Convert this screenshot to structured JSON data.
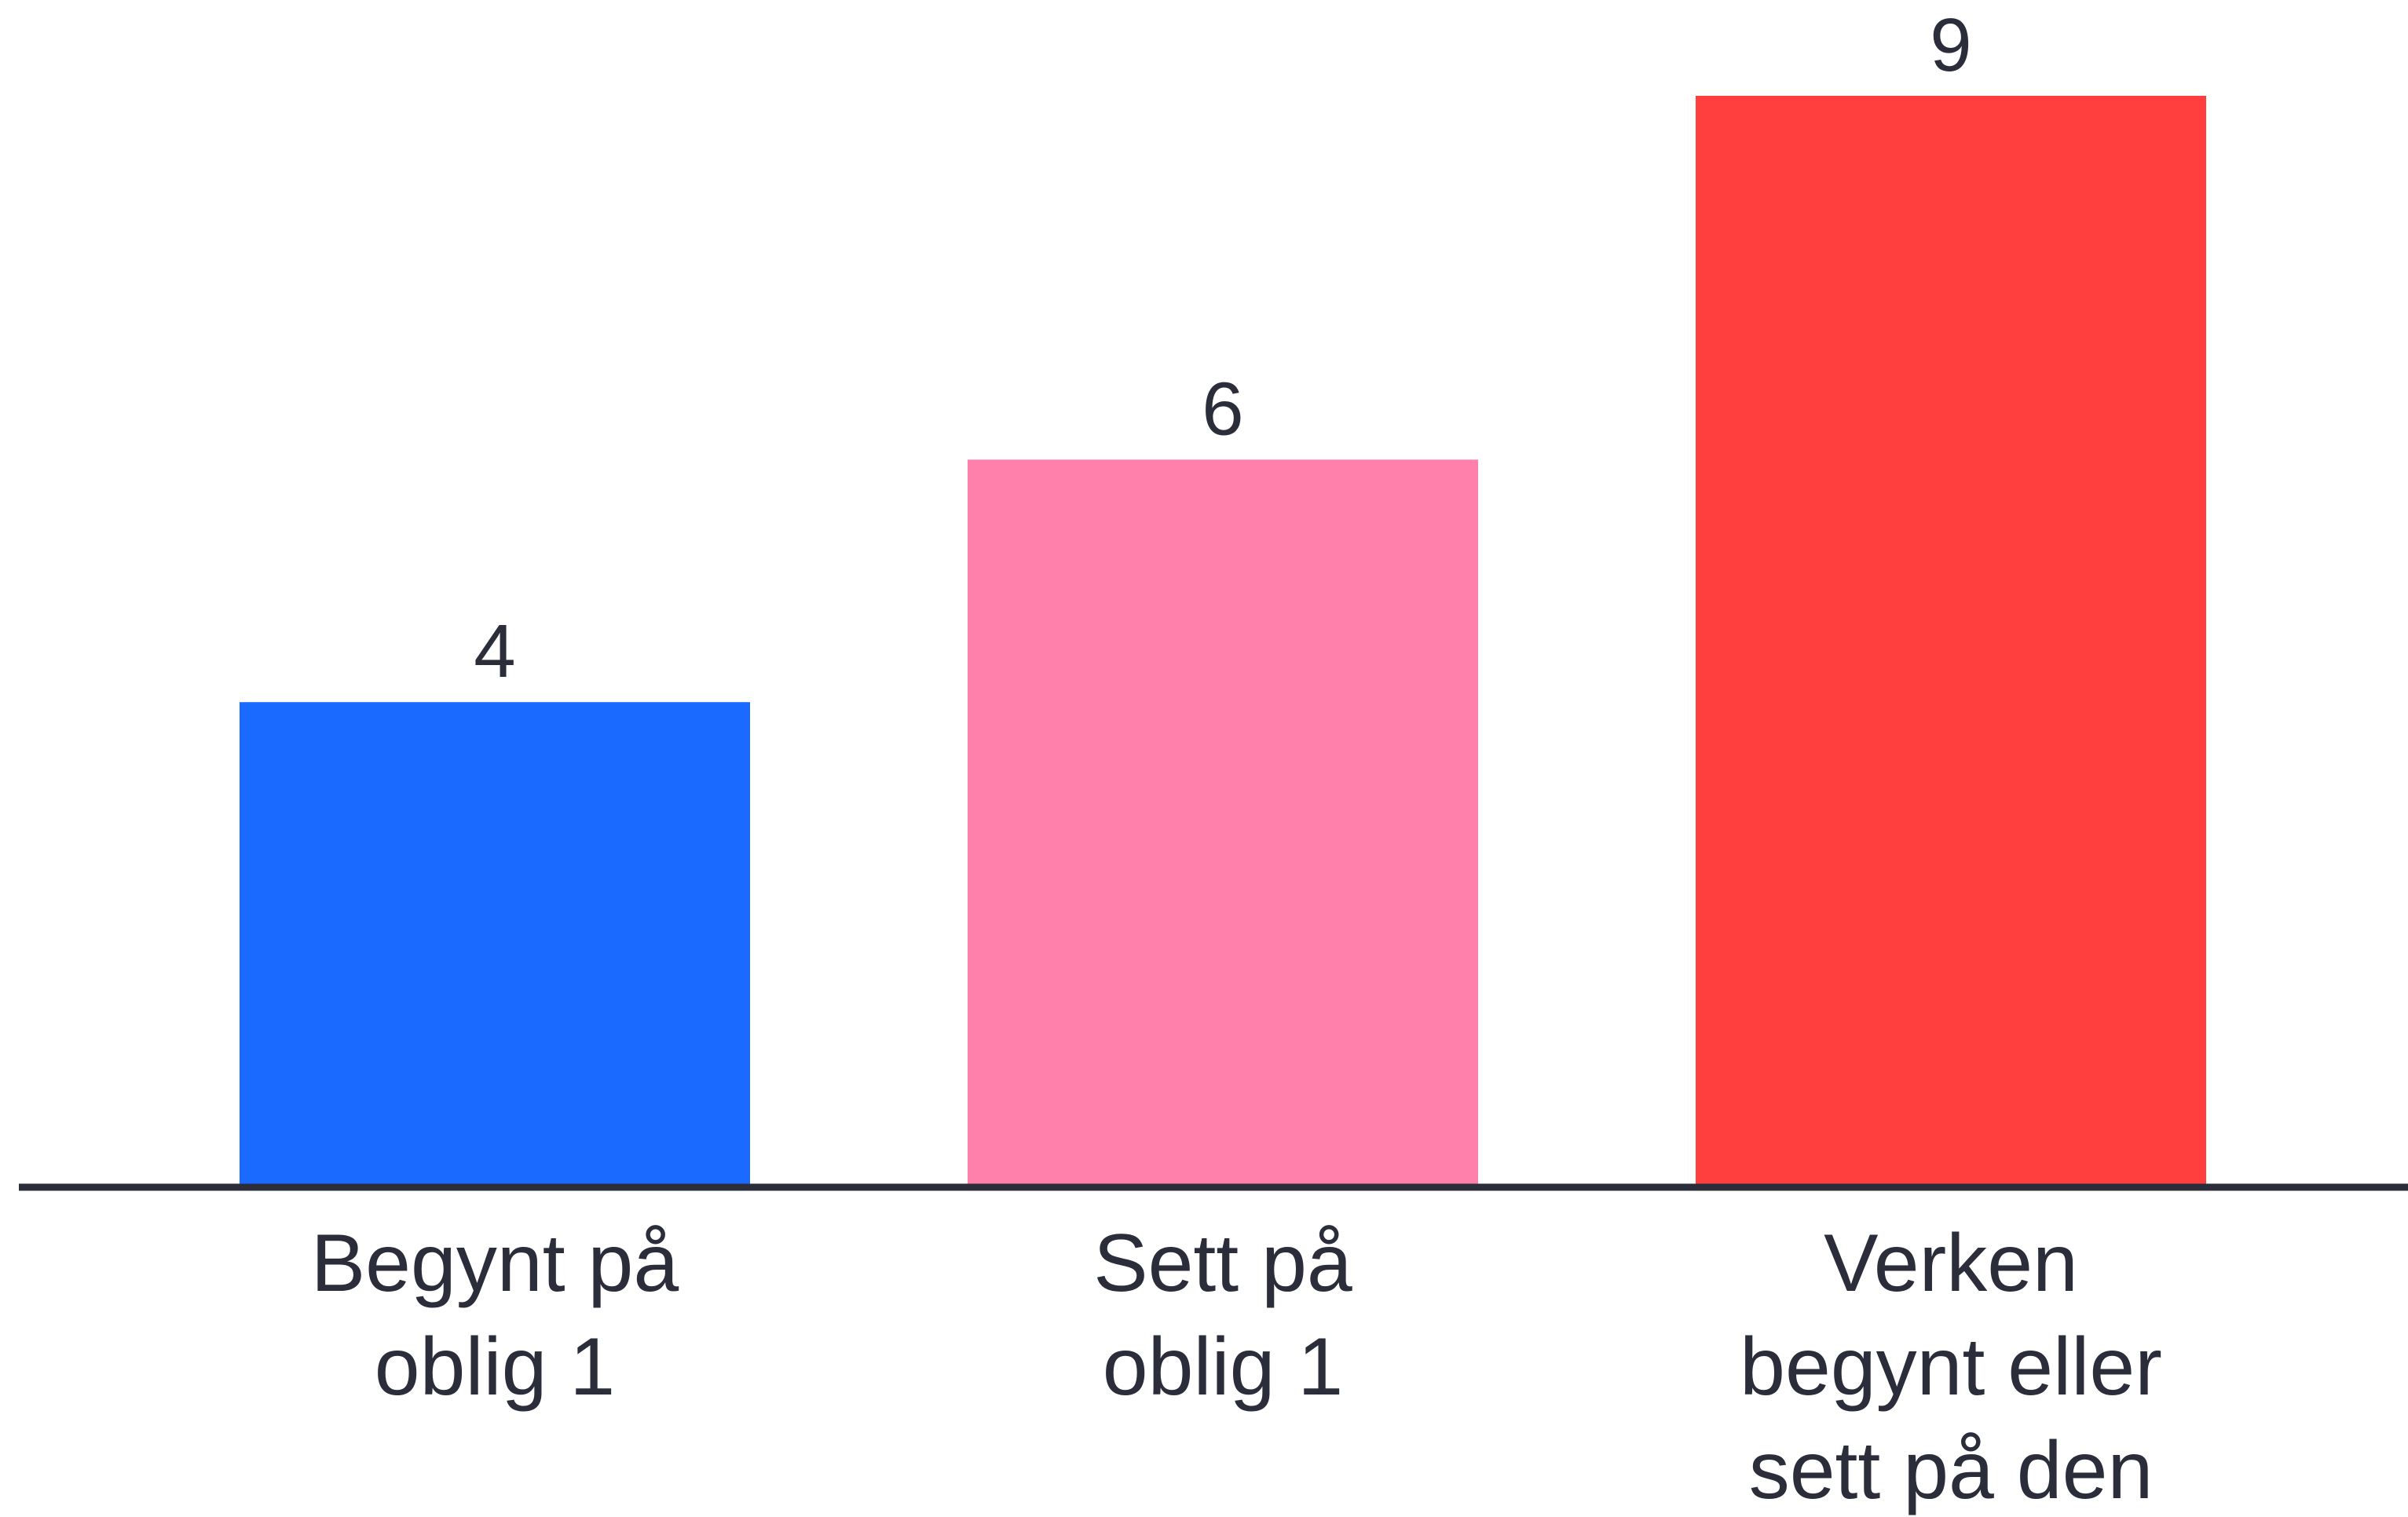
{
  "chart_data": {
    "type": "bar",
    "title": "",
    "xlabel": "",
    "ylabel": "",
    "ylim": [
      0,
      9
    ],
    "grid": false,
    "legend": "none",
    "categories": [
      [
        "Begynt på",
        "oblig 1"
      ],
      [
        "Sett på",
        "oblig 1"
      ],
      [
        "Verken",
        "begynt eller",
        "sett på den"
      ]
    ],
    "values": [
      4,
      6,
      9
    ],
    "data_labels": [
      "4",
      "6",
      "9"
    ],
    "colors": [
      "#1b6aff",
      "#ff80aa",
      "#ff3f3d"
    ],
    "axis_color": "#2b2d3a"
  }
}
